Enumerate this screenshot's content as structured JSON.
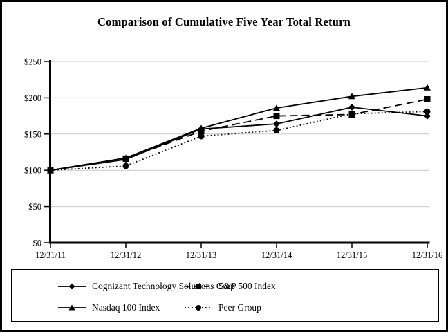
{
  "title": "Comparison of Cumulative Five Year Total Return",
  "chart_data": {
    "type": "line",
    "x_labels": [
      "12/31/11",
      "12/31/12",
      "12/31/13",
      "12/31/14",
      "12/31/15",
      "12/31/16"
    ],
    "y_ticks": {
      "values": [
        0,
        50,
        100,
        150,
        200,
        250
      ],
      "labels": [
        "$0",
        "$50",
        "$100",
        "$150",
        "$200",
        "$250"
      ]
    },
    "ylim": [
      0,
      250
    ],
    "grid": "horizontal-gray-lines",
    "legend_position": "bottom-boxed",
    "series": [
      {
        "name": "Cognizant Technology Solutions Corp",
        "values": [
          100,
          115,
          157,
          164,
          187,
          175
        ],
        "line": "solid",
        "marker": "diamond"
      },
      {
        "name": "S&P 500 Index",
        "values": [
          100,
          116,
          154,
          175,
          177,
          198
        ],
        "line": "dashed",
        "marker": "square"
      },
      {
        "name": "Nasdaq 100 Index",
        "values": [
          100,
          117,
          158,
          186,
          202,
          214
        ],
        "line": "solid",
        "marker": "triangle"
      },
      {
        "name": "Peer Group",
        "values": [
          100,
          106,
          147,
          155,
          178,
          181
        ],
        "line": "dotted",
        "marker": "circle"
      }
    ],
    "colors": {
      "series": "#000000",
      "grid": "#c9c9c9",
      "axis": "#000000",
      "background": "#ffffff",
      "border": "#000000"
    }
  }
}
